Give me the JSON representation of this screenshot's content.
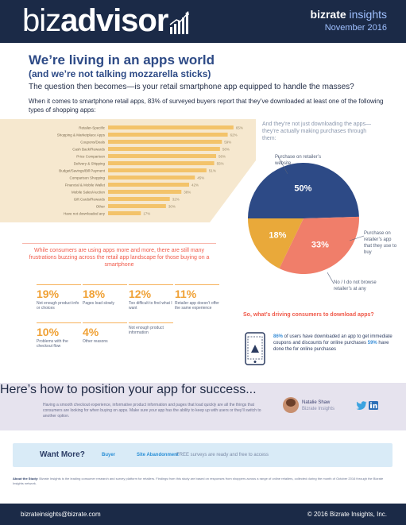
{
  "header": {
    "logo_part1": "biz",
    "logo_part2": "advisor",
    "brand_bold": "bizrate",
    "brand_light": " insights",
    "date": "November 2016"
  },
  "headline": "We’re living in an apps world",
  "subheadline": "(and we’re not talking mozzarella sticks)",
  "lead": "The question then becomes—is your retail smartphone app equipped to handle the masses?",
  "intro": "When it comes to smartphone retail apps, 83% of surveyed buyers report that they’ve downloaded at least one of the following types of shopping apps:",
  "chart_data": [
    {
      "type": "bar",
      "orientation": "horizontal",
      "categories": [
        "Retailer-Specific",
        "Shopping & Marketplace Apps",
        "Coupons/Deals",
        "Cash Back/Rewards",
        "Price Comparison",
        "Delivery & Shipping",
        "Budget/Savings/Bill Payment",
        "Comparison Shopping",
        "Financial & Mobile Wallet",
        "Mobile Sales/Auction",
        "Gift Cards/Rewards",
        "Other",
        "Have not downloaded any"
      ],
      "values": [
        65,
        62,
        59,
        58,
        56,
        55,
        51,
        45,
        42,
        38,
        32,
        30,
        17
      ],
      "value_labels": [
        "65%",
        "62%",
        "59%",
        "58%",
        "56%",
        "55%",
        "51%",
        "45%",
        "42%",
        "38%",
        "32%",
        "30%",
        "17%"
      ],
      "xlim": [
        0,
        70
      ],
      "bar_color": "#f3c36a",
      "background": "#f6e8cf"
    },
    {
      "type": "pie",
      "values": [
        50,
        33,
        18
      ],
      "labels": [
        "50%",
        "33%",
        "18%"
      ],
      "colors": [
        "#2d4a86",
        "#f07e6a",
        "#e9a93a"
      ]
    }
  ],
  "pie": {
    "caption": "And they’re not just downloading the apps—they’re actually making purchases through them:",
    "label_top": "Purchase on retailer’s website",
    "label_right": "Purchase on retailer’s app that they use to buy",
    "label_bottom": "No / I do not browse retailer’s at any"
  },
  "quote": "While consumers are using apps more and more, there are still many frustrations buzzing across the retail app landscape for those buying on a smartphone",
  "stats": [
    {
      "pct": "19%",
      "text": "Not enough product info or choices"
    },
    {
      "pct": "18%",
      "text": "Pages load slowly"
    },
    {
      "pct": "12%",
      "text": "Too difficult to find what I want"
    },
    {
      "pct": "11%",
      "text": "Retailer app doesn’t offer the same experience"
    },
    {
      "pct": "10%",
      "text": "Problems with the checkout flow"
    },
    {
      "pct": "4%",
      "text": "Other reasons"
    }
  ],
  "extra_stat_text": "Not enough product information",
  "download": {
    "heading": "So, what’s driving consumers to download apps?",
    "text_highlight1": "86%",
    "text_mid": " of users have downloaded an app to get immediate coupons and discounts for online purchases ",
    "text_highlight2": "59%",
    "text_end": " have done the for online purchases"
  },
  "position": {
    "title": "Here’s how to position your app for success...",
    "body": "Having a smooth checkout experience, informative product information and pages that load quickly are all the things that consumers are looking for when buying on apps. Make sure your app has the ability to keep up with users or they’ll switch to another option."
  },
  "author": {
    "name": "Natalie Shaw",
    "role": "Bizrate Insights"
  },
  "icons": {
    "twitter": "twitter-icon",
    "linkedin": "linkedin-icon",
    "phone": "smartphone-icon",
    "chart": "growth-chart-icon"
  },
  "want_more": {
    "title": "Want More?",
    "link1": "Buyer",
    "link2": "Site Abandonment",
    "rest": "FREE surveys are ready and free to access"
  },
  "about": {
    "label": "About the Study:",
    "text": " Bizrate Insights is the leading consumer research and survey platform for retailers. Findings from this study are based on responses from shoppers across a range of online retailers, collected during the month of October 2016 through the Bizrate Insights network."
  },
  "footer": {
    "email": "bizrateinsights@bizrate.com",
    "copyright": "© 2016 Bizrate Insights, Inc."
  }
}
